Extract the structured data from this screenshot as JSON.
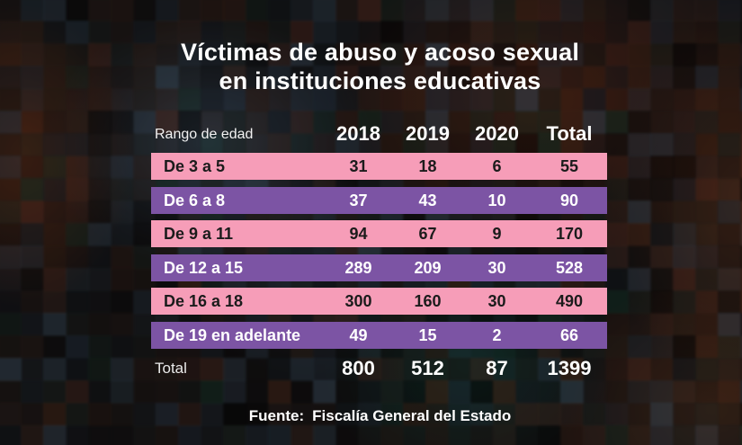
{
  "title": {
    "line1": "Víctimas de abuso y acoso sexual",
    "line2": "en instituciones educativas"
  },
  "table": {
    "header": {
      "label": "Rango de edad",
      "columns": [
        "2018",
        "2019",
        "2020",
        "Total"
      ]
    },
    "rows": [
      {
        "label": "De 3 a 5",
        "values": [
          "31",
          "18",
          "6",
          "55"
        ]
      },
      {
        "label": "De 6 a 8",
        "values": [
          "37",
          "43",
          "10",
          "90"
        ]
      },
      {
        "label": "De 9 a 11",
        "values": [
          "94",
          "67",
          "9",
          "170"
        ]
      },
      {
        "label": "De 12 a 15",
        "values": [
          "289",
          "209",
          "30",
          "528"
        ]
      },
      {
        "label": "De 16 a 18",
        "values": [
          "300",
          "160",
          "30",
          "490"
        ]
      },
      {
        "label": "De 19 en adelante",
        "values": [
          "49",
          "15",
          "2",
          "66"
        ]
      }
    ],
    "total_row": {
      "label": "Total",
      "values": [
        "800",
        "512",
        "87",
        "1399"
      ]
    }
  },
  "footer": {
    "source_label": "Fuente:",
    "source_text": "Fiscalía General del Estado"
  },
  "colors": {
    "row_pink": "#f69db8",
    "row_purple": "#7c54a4",
    "text_on_pink": "#1b1b1b",
    "text_on_purple": "#ffffff",
    "title_text": "#ffffff"
  },
  "background": {
    "palette": [
      "#1a1412",
      "#241a14",
      "#30201a",
      "#3a2014",
      "#151a20",
      "#232e38",
      "#2e3c48",
      "#0c0c0c",
      "#181d1a",
      "#12281f",
      "#40221a",
      "#0f1418",
      "#050505",
      "#2a1810",
      "#1c2630"
    ]
  },
  "chart_data": {
    "type": "table",
    "title": "Víctimas de abuso y acoso sexual en instituciones educativas",
    "row_header": "Rango de edad",
    "categories": [
      "De 3 a 5",
      "De 6 a 8",
      "De 9 a 11",
      "De 12 a 15",
      "De 16 a 18",
      "De 19 en adelante"
    ],
    "series": [
      {
        "name": "2018",
        "values": [
          31,
          37,
          94,
          289,
          300,
          49
        ]
      },
      {
        "name": "2019",
        "values": [
          18,
          43,
          67,
          209,
          160,
          15
        ]
      },
      {
        "name": "2020",
        "values": [
          6,
          10,
          9,
          30,
          30,
          2
        ]
      },
      {
        "name": "Total",
        "values": [
          55,
          90,
          170,
          528,
          490,
          66
        ]
      }
    ],
    "column_totals": {
      "2018": 800,
      "2019": 512,
      "2020": 87,
      "Total": 1399
    },
    "source": "Fuente: Fiscalía General del Estado",
    "legend_position": "none",
    "grid": false
  }
}
